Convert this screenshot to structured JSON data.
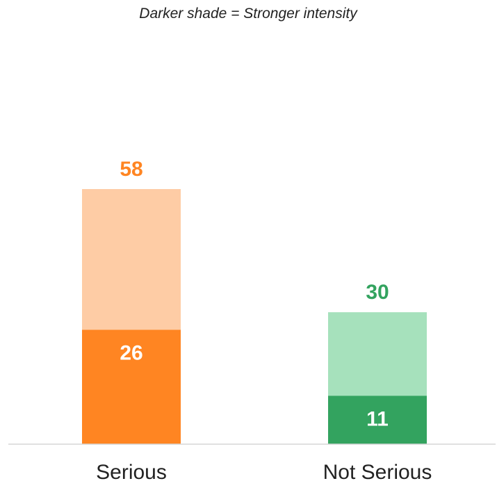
{
  "chart_data": {
    "type": "bar",
    "subtitle": "Darker shade = Stronger intensity",
    "categories": [
      "Serious",
      "Not Serious"
    ],
    "series": [
      {
        "values": [
          26,
          11
        ]
      },
      {
        "values": [
          32,
          19
        ]
      }
    ],
    "totals": [
      58,
      30
    ],
    "inner_labels": [
      "26",
      "11"
    ],
    "total_labels": [
      "58",
      "30"
    ],
    "ylim": [
      0,
      58
    ],
    "colors": {
      "strong": [
        "#ff8522",
        "#33a35f"
      ],
      "light": [
        "#fecca5",
        "#a6e1bc"
      ],
      "total_label": [
        "#ff8522",
        "#33a35f"
      ],
      "inner_label": "#ffffff",
      "baseline": "#d5d5d5"
    },
    "grid": false,
    "legend": "none"
  }
}
